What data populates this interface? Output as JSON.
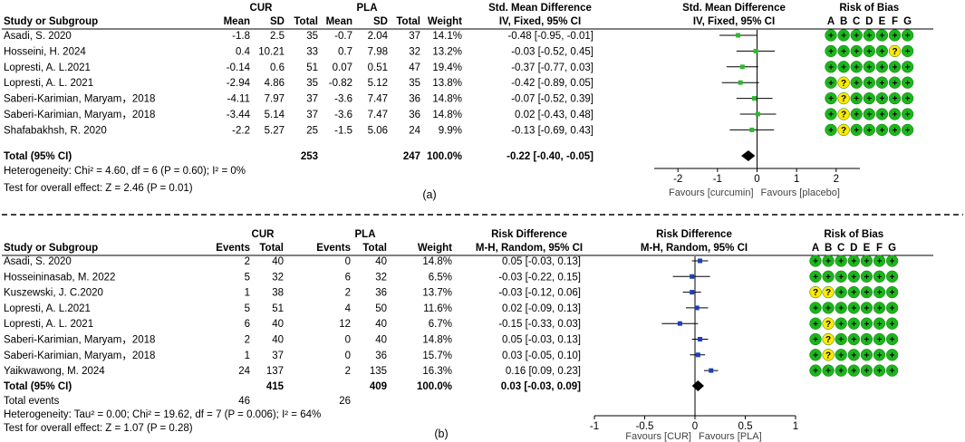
{
  "chart_data": [
    {
      "type": "forest",
      "panel_label": "(a)",
      "group1_name": "CUR",
      "group2_name": "PLA",
      "col_headers": {
        "study": "Study or Subgroup",
        "g1": [
          "Mean",
          "SD",
          "Total"
        ],
        "g2": [
          "Mean",
          "SD",
          "Total"
        ],
        "weight": "Weight",
        "effect_title": "Std. Mean Difference",
        "effect_method": "IV, Fixed, 95% CI",
        "plot_title": "Std. Mean Difference",
        "plot_method": "IV, Fixed, 95% CI",
        "rob_title": "Risk of Bias",
        "rob_letters": [
          "A",
          "B",
          "C",
          "D",
          "E",
          "F",
          "G"
        ]
      },
      "rows": [
        {
          "study": "Asadi, S. 2020",
          "g1": [
            "-1.8",
            "2.5",
            "35"
          ],
          "g2": [
            "-0.7",
            "2.04",
            "37"
          ],
          "weight": "14.1%",
          "effect_text": "-0.48 [-0.95, -0.01]",
          "est": -0.48,
          "lo": -0.95,
          "hi": -0.01,
          "rob": [
            "+",
            "+",
            "+",
            "+",
            "+",
            "+",
            "+"
          ]
        },
        {
          "study": "Hosseini, H. 2024",
          "g1": [
            "0.4",
            "10.21",
            "33"
          ],
          "g2": [
            "0.7",
            "7.98",
            "32"
          ],
          "weight": "13.2%",
          "effect_text": "-0.03 [-0.52, 0.45]",
          "est": -0.03,
          "lo": -0.52,
          "hi": 0.45,
          "rob": [
            "+",
            "+",
            "+",
            "+",
            "+",
            "?",
            "+"
          ]
        },
        {
          "study": "Lopresti, A. L.2021",
          "g1": [
            "-0.14",
            "0.6",
            "51"
          ],
          "g2": [
            "0.07",
            "0.51",
            "47"
          ],
          "weight": "19.4%",
          "effect_text": "-0.37 [-0.77, 0.03]",
          "est": -0.37,
          "lo": -0.77,
          "hi": 0.03,
          "rob": [
            "+",
            "+",
            "+",
            "+",
            "+",
            "+",
            "+"
          ]
        },
        {
          "study": "Lopresti, A. L. 2021",
          "g1": [
            "-2.94",
            "4.86",
            "35"
          ],
          "g2": [
            "-0.82",
            "5.12",
            "35"
          ],
          "weight": "13.8%",
          "effect_text": "-0.42 [-0.89, 0.05]",
          "est": -0.42,
          "lo": -0.89,
          "hi": 0.05,
          "rob": [
            "+",
            "?",
            "+",
            "+",
            "+",
            "+",
            "+"
          ]
        },
        {
          "study": "Saberi-Karimian, Maryam，2018",
          "g1": [
            "-4.11",
            "7.97",
            "37"
          ],
          "g2": [
            "-3.6",
            "7.47",
            "36"
          ],
          "weight": "14.8%",
          "effect_text": "-0.07 [-0.52, 0.39]",
          "est": -0.07,
          "lo": -0.52,
          "hi": 0.39,
          "rob": [
            "+",
            "?",
            "+",
            "+",
            "+",
            "+",
            "+"
          ]
        },
        {
          "study": "Saberi-Karimian, Maryam，2018",
          "g1": [
            "-3.44",
            "5.14",
            "37"
          ],
          "g2": [
            "-3.6",
            "7.47",
            "36"
          ],
          "weight": "14.8%",
          "effect_text": "0.02 [-0.43, 0.48]",
          "est": 0.02,
          "lo": -0.43,
          "hi": 0.48,
          "rob": [
            "+",
            "?",
            "+",
            "+",
            "+",
            "+",
            "+"
          ]
        },
        {
          "study": "Shafabakhsh, R. 2020",
          "g1": [
            "-2.2",
            "5.27",
            "25"
          ],
          "g2": [
            "-1.5",
            "5.06",
            "24"
          ],
          "weight": "9.9%",
          "effect_text": "-0.13 [-0.69, 0.43]",
          "est": -0.13,
          "lo": -0.69,
          "hi": 0.43,
          "rob": [
            "+",
            "?",
            "+",
            "+",
            "+",
            "+",
            "+"
          ]
        }
      ],
      "total": {
        "label": "Total (95% CI)",
        "g1_total": "253",
        "g2_total": "247",
        "weight": "100.0%",
        "effect_text": "-0.22 [-0.40, -0.05]",
        "est": -0.22,
        "lo": -0.4,
        "hi": -0.05
      },
      "total_events": null,
      "heterogeneity": "Heterogeneity: Chi² = 4.60, df = 6 (P = 0.60); I² = 0%",
      "overall_effect": "Test for overall effect: Z = 2.46 (P = 0.01)",
      "axis": {
        "min": -2.6,
        "max": 2.6,
        "ticks": [
          -2,
          -1,
          0,
          1,
          2
        ],
        "tick_labels": [
          "-2",
          "-1",
          "0",
          "1",
          "2"
        ]
      },
      "favours_left": "Favours [curcumin]",
      "favours_right": "Favours [placebo]",
      "colors": {
        "marker": "#2eb82e",
        "diamond": "#000000",
        "rob_plus": "#1cb51c",
        "rob_q": "#ffea00"
      }
    },
    {
      "type": "forest",
      "panel_label": "(b)",
      "group1_name": "CUR",
      "group2_name": "PLA",
      "col_headers": {
        "study": "Study or Subgroup",
        "g1": [
          "Events",
          "Total"
        ],
        "g2": [
          "Events",
          "Total"
        ],
        "weight": "Weight",
        "effect_title": "Risk Difference",
        "effect_method": "M-H, Random, 95% CI",
        "plot_title": "Risk Difference",
        "plot_method": "M-H, Random, 95% CI",
        "rob_title": "Risk of Bias",
        "rob_letters": [
          "A",
          "B",
          "C",
          "D",
          "E",
          "F",
          "G"
        ]
      },
      "rows": [
        {
          "study": "Asadi, S. 2020",
          "g1": [
            "2",
            "40"
          ],
          "g2": [
            "0",
            "40"
          ],
          "weight": "14.8%",
          "effect_text": "0.05 [-0.03, 0.13]",
          "est": 0.05,
          "lo": -0.03,
          "hi": 0.13,
          "rob": [
            "+",
            "+",
            "+",
            "+",
            "+",
            "+",
            "+"
          ]
        },
        {
          "study": "Hosseininasab, M. 2022",
          "g1": [
            "5",
            "32"
          ],
          "g2": [
            "6",
            "32"
          ],
          "weight": "6.5%",
          "effect_text": "-0.03 [-0.22, 0.15]",
          "est": -0.03,
          "lo": -0.22,
          "hi": 0.15,
          "rob": [
            "+",
            "+",
            "+",
            "+",
            "+",
            "+",
            "+"
          ]
        },
        {
          "study": "Kuszewski, J. C.2020",
          "g1": [
            "1",
            "38"
          ],
          "g2": [
            "2",
            "36"
          ],
          "weight": "13.7%",
          "effect_text": "-0.03 [-0.12, 0.06]",
          "est": -0.03,
          "lo": -0.12,
          "hi": 0.06,
          "rob": [
            "?",
            "?",
            "+",
            "+",
            "+",
            "+",
            "+"
          ]
        },
        {
          "study": "Lopresti, A. L.2021",
          "g1": [
            "5",
            "51"
          ],
          "g2": [
            "4",
            "50"
          ],
          "weight": "11.6%",
          "effect_text": "0.02 [-0.09, 0.13]",
          "est": 0.02,
          "lo": -0.09,
          "hi": 0.13,
          "rob": [
            "+",
            "+",
            "+",
            "+",
            "+",
            "+",
            "+"
          ]
        },
        {
          "study": "Lopresti, A. L. 2021",
          "g1": [
            "6",
            "40"
          ],
          "g2": [
            "12",
            "40"
          ],
          "weight": "6.7%",
          "effect_text": "-0.15 [-0.33, 0.03]",
          "est": -0.15,
          "lo": -0.33,
          "hi": 0.03,
          "rob": [
            "+",
            "?",
            "+",
            "+",
            "+",
            "+",
            "+"
          ]
        },
        {
          "study": "Saberi-Karimian, Maryam，2018",
          "g1": [
            "2",
            "40"
          ],
          "g2": [
            "0",
            "40"
          ],
          "weight": "14.8%",
          "effect_text": "0.05 [-0.03, 0.13]",
          "est": 0.05,
          "lo": -0.03,
          "hi": 0.13,
          "rob": [
            "+",
            "?",
            "+",
            "+",
            "+",
            "+",
            "+"
          ]
        },
        {
          "study": "Saberi-Karimian, Maryam，2018",
          "g1": [
            "1",
            "37"
          ],
          "g2": [
            "0",
            "36"
          ],
          "weight": "15.7%",
          "effect_text": "0.03 [-0.05, 0.10]",
          "est": 0.03,
          "lo": -0.05,
          "hi": 0.1,
          "rob": [
            "+",
            "?",
            "+",
            "+",
            "+",
            "+",
            "+"
          ]
        },
        {
          "study": "Yaikwawong, M. 2024",
          "g1": [
            "24",
            "137"
          ],
          "g2": [
            "2",
            "135"
          ],
          "weight": "16.3%",
          "effect_text": "0.16 [0.09, 0.23]",
          "est": 0.16,
          "lo": 0.09,
          "hi": 0.23,
          "rob": [
            "+",
            "+",
            "+",
            "+",
            "+",
            "+",
            "+"
          ]
        }
      ],
      "total": {
        "label": "Total (95% CI)",
        "g1_total": "415",
        "g2_total": "409",
        "weight": "100.0%",
        "effect_text": "0.03 [-0.03, 0.09]",
        "est": 0.03,
        "lo": -0.03,
        "hi": 0.09
      },
      "total_events": {
        "label": "Total events",
        "g1": "46",
        "g2": "26"
      },
      "heterogeneity": "Heterogeneity: Tau² = 0.00; Chi² = 19.62, df = 7 (P = 0.006); I² = 64%",
      "overall_effect": "Test for overall effect: Z = 1.07 (P = 0.28)",
      "axis": {
        "min": -1,
        "max": 1,
        "ticks": [
          -1,
          -0.5,
          0,
          0.5,
          1
        ],
        "tick_labels": [
          "-1",
          "-0.5",
          "0",
          "0.5",
          "1"
        ]
      },
      "favours_left": "Favours [CUR]",
      "favours_right": "Favours [PLA]",
      "colors": {
        "marker": "#1c3fbd",
        "diamond": "#000000",
        "rob_plus": "#1cb51c",
        "rob_q": "#ffea00"
      }
    }
  ]
}
